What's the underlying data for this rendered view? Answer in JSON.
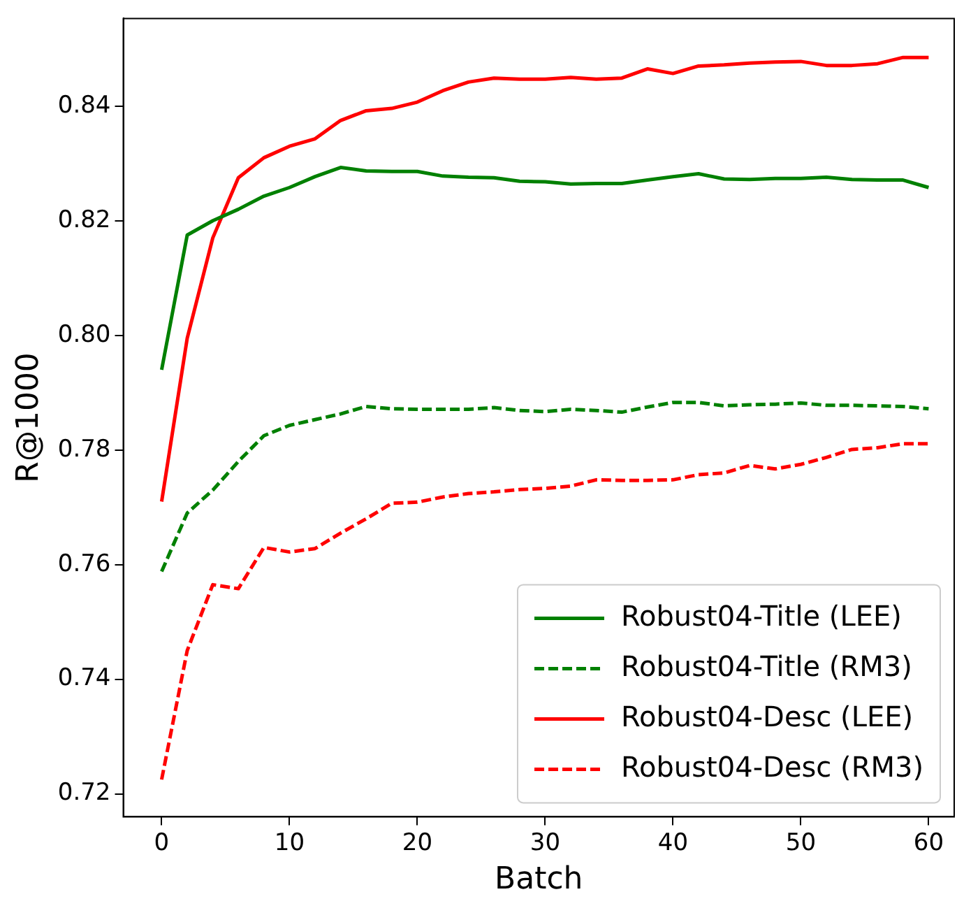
{
  "chart_data": {
    "type": "line",
    "xlabel": "Batch",
    "ylabel": "R@1000",
    "x": [
      0,
      2,
      4,
      6,
      8,
      10,
      12,
      14,
      16,
      18,
      20,
      22,
      24,
      26,
      28,
      30,
      32,
      34,
      36,
      38,
      40,
      42,
      44,
      46,
      48,
      50,
      52,
      54,
      56,
      58,
      60
    ],
    "series": [
      {
        "name": "Robust04-Title (LEE)",
        "color": "#008000",
        "line_style": "solid",
        "values": [
          0.794,
          0.8175,
          0.82,
          0.822,
          0.8243,
          0.8258,
          0.8277,
          0.8293,
          0.8287,
          0.8286,
          0.8286,
          0.8278,
          0.8276,
          0.8275,
          0.8269,
          0.8268,
          0.8264,
          0.8265,
          0.8265,
          0.8271,
          0.8277,
          0.8282,
          0.8273,
          0.8272,
          0.8274,
          0.8274,
          0.8276,
          0.8272,
          0.8271,
          0.8271,
          0.8258
        ]
      },
      {
        "name": "Robust04-Title (RM3)",
        "color": "#008000",
        "line_style": "dashed",
        "values": [
          0.7588,
          0.769,
          0.773,
          0.778,
          0.7825,
          0.7843,
          0.7853,
          0.7863,
          0.7876,
          0.7872,
          0.7871,
          0.7871,
          0.7871,
          0.7874,
          0.7869,
          0.7867,
          0.7871,
          0.7869,
          0.7866,
          0.7875,
          0.7883,
          0.7883,
          0.7877,
          0.7879,
          0.788,
          0.7882,
          0.7878,
          0.7878,
          0.7877,
          0.7876,
          0.7872
        ]
      },
      {
        "name": "Robust04-Desc (LEE)",
        "color": "#ff0000",
        "line_style": "solid",
        "values": [
          0.771,
          0.7995,
          0.817,
          0.8275,
          0.831,
          0.833,
          0.8343,
          0.8375,
          0.8392,
          0.8396,
          0.8407,
          0.8427,
          0.8442,
          0.8449,
          0.8447,
          0.8447,
          0.845,
          0.8447,
          0.8449,
          0.8465,
          0.8457,
          0.847,
          0.8472,
          0.8475,
          0.8477,
          0.8478,
          0.8471,
          0.8471,
          0.8474,
          0.8485,
          0.8485
        ]
      },
      {
        "name": "Robust04-Desc (RM3)",
        "color": "#ff0000",
        "line_style": "dashed",
        "values": [
          0.7225,
          0.745,
          0.7565,
          0.7558,
          0.763,
          0.7622,
          0.7628,
          0.7655,
          0.768,
          0.7707,
          0.7709,
          0.7718,
          0.7724,
          0.7727,
          0.7731,
          0.7733,
          0.7737,
          0.7748,
          0.7747,
          0.7747,
          0.7748,
          0.7757,
          0.776,
          0.7773,
          0.7767,
          0.7775,
          0.7787,
          0.7801,
          0.7804,
          0.7811,
          0.7811
        ]
      }
    ],
    "xlim": [
      -3,
      62
    ],
    "xticks": [
      0,
      10,
      20,
      30,
      40,
      50,
      60
    ],
    "ylim": [
      0.716,
      0.8553
    ],
    "yticks": [
      {
        "value": 0.72,
        "label": "0.72"
      },
      {
        "value": 0.74,
        "label": "0.74"
      },
      {
        "value": 0.76,
        "label": "0.76"
      },
      {
        "value": 0.78,
        "label": "0.78"
      },
      {
        "value": 0.8,
        "label": "0.80"
      },
      {
        "value": 0.82,
        "label": "0.82"
      },
      {
        "value": 0.84,
        "label": "0.84"
      }
    ],
    "grid": false,
    "legend": "bottom right",
    "marker": "none"
  }
}
